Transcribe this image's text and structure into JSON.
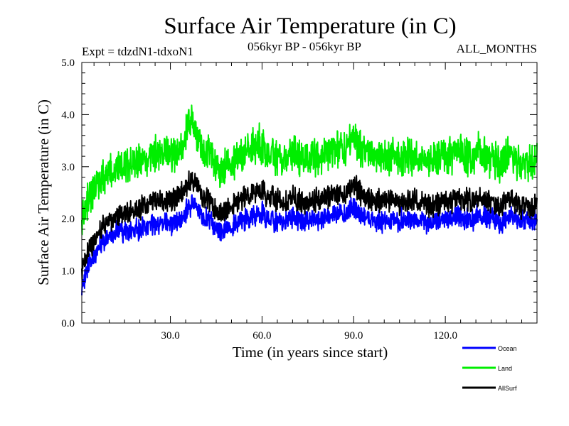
{
  "chart_data": {
    "type": "line",
    "title": "Surface Air Temperature (in C)",
    "subtitle": "056kyr BP - 056kyr BP",
    "experiment_label": "Expt = tdzdN1-tdxoN1",
    "months_label": "ALL_MONTHS",
    "xlabel": "Time (in years since start)",
    "ylabel": "Surface Air Temperature (in C)",
    "xlim": [
      1,
      150
    ],
    "ylim": [
      0,
      5
    ],
    "xticks": [
      30,
      60,
      90,
      120
    ],
    "xtick_labels": [
      "30.0",
      "60.0",
      "90.0",
      "120.0"
    ],
    "yticks": [
      0,
      1,
      2,
      3,
      4,
      5
    ],
    "ytick_labels": [
      "0.0",
      "1.0",
      "2.0",
      "3.0",
      "4.0",
      "5.0"
    ],
    "grid": false,
    "legend_position": "bottom-right",
    "x": [
      1,
      2,
      3,
      4,
      5,
      6,
      7,
      8,
      9,
      10,
      12,
      15,
      18,
      20,
      22,
      25,
      28,
      30,
      32,
      34,
      35,
      36,
      37,
      38,
      40,
      42,
      44,
      45,
      46,
      48,
      50,
      52,
      55,
      57,
      58,
      60,
      62,
      65,
      68,
      70,
      72,
      75,
      78,
      80,
      82,
      85,
      88,
      89,
      90,
      91,
      92,
      95,
      98,
      100,
      102,
      105,
      108,
      110,
      112,
      115,
      118,
      120,
      122,
      125,
      128,
      130,
      132,
      135,
      138,
      140,
      142,
      145,
      148,
      150
    ],
    "series": [
      {
        "name": "Ocean",
        "color": "#0000ff",
        "values": [
          0.6,
          0.9,
          1.1,
          1.2,
          1.3,
          1.4,
          1.5,
          1.55,
          1.6,
          1.65,
          1.7,
          1.75,
          1.8,
          1.8,
          1.85,
          1.85,
          1.9,
          1.9,
          1.95,
          2.0,
          2.1,
          2.2,
          2.3,
          2.25,
          2.1,
          2.0,
          1.9,
          1.85,
          1.75,
          1.8,
          1.85,
          1.95,
          2.0,
          2.05,
          2.1,
          2.1,
          2.0,
          1.95,
          1.95,
          2.0,
          2.0,
          1.95,
          2.0,
          2.0,
          2.05,
          2.05,
          2.15,
          2.2,
          2.25,
          2.2,
          2.1,
          2.0,
          1.95,
          1.95,
          1.95,
          1.95,
          1.95,
          2.0,
          2.0,
          1.9,
          1.95,
          2.0,
          2.0,
          2.05,
          2.0,
          2.0,
          2.05,
          2.0,
          1.9,
          2.0,
          2.05,
          1.9,
          1.95,
          2.0
        ]
      },
      {
        "name": "Land",
        "color": "#00ee00",
        "values": [
          1.9,
          2.2,
          2.4,
          2.5,
          2.6,
          2.7,
          2.75,
          2.8,
          2.8,
          2.85,
          2.9,
          3.0,
          3.05,
          3.1,
          3.15,
          3.2,
          3.2,
          3.25,
          3.3,
          3.4,
          3.6,
          3.8,
          3.9,
          3.7,
          3.4,
          3.3,
          3.1,
          3.0,
          2.9,
          3.0,
          3.1,
          3.2,
          3.3,
          3.35,
          3.4,
          3.4,
          3.3,
          3.2,
          3.2,
          3.25,
          3.2,
          3.15,
          3.2,
          3.25,
          3.3,
          3.3,
          3.45,
          3.5,
          3.6,
          3.5,
          3.4,
          3.3,
          3.25,
          3.2,
          3.2,
          3.2,
          3.15,
          3.2,
          3.15,
          3.1,
          3.15,
          3.2,
          3.2,
          3.3,
          3.2,
          3.2,
          3.25,
          3.15,
          3.05,
          3.2,
          3.2,
          3.0,
          3.1,
          3.2
        ]
      },
      {
        "name": "AllSurf",
        "color": "#000000",
        "values": [
          1.0,
          1.2,
          1.4,
          1.5,
          1.6,
          1.7,
          1.8,
          1.85,
          1.9,
          1.95,
          2.0,
          2.1,
          2.15,
          2.2,
          2.25,
          2.3,
          2.3,
          2.35,
          2.4,
          2.5,
          2.6,
          2.7,
          2.8,
          2.7,
          2.5,
          2.4,
          2.25,
          2.15,
          2.1,
          2.15,
          2.25,
          2.35,
          2.45,
          2.5,
          2.55,
          2.55,
          2.45,
          2.35,
          2.35,
          2.4,
          2.35,
          2.3,
          2.35,
          2.4,
          2.45,
          2.45,
          2.55,
          2.6,
          2.7,
          2.6,
          2.5,
          2.4,
          2.35,
          2.35,
          2.35,
          2.3,
          2.3,
          2.35,
          2.3,
          2.25,
          2.3,
          2.35,
          2.35,
          2.4,
          2.35,
          2.35,
          2.4,
          2.3,
          2.2,
          2.35,
          2.35,
          2.2,
          2.25,
          2.3
        ]
      }
    ]
  }
}
